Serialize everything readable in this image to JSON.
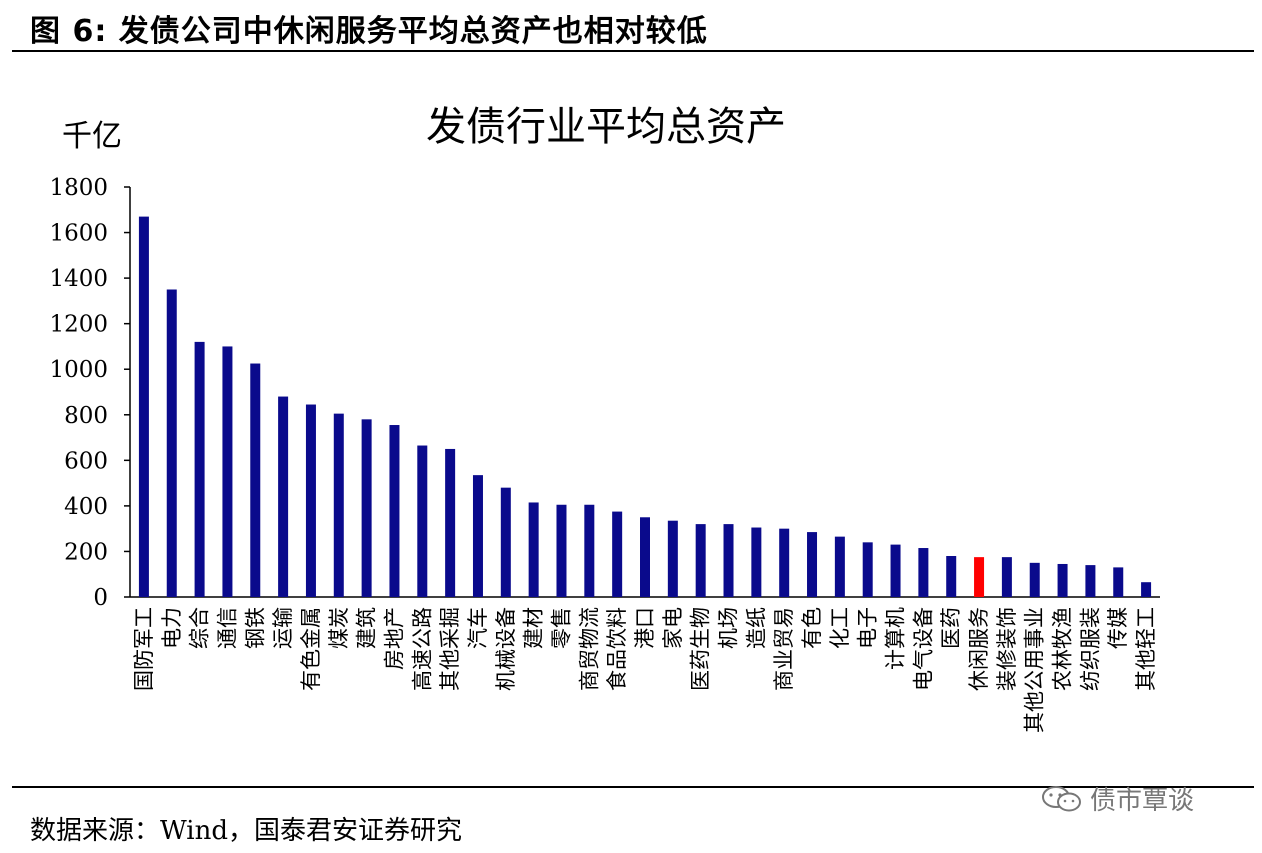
{
  "figure_title": "图  6:  发债公司中休闲服务平均总资产也相对较低",
  "source_text": "数据来源：Wind，国泰君安证券研究",
  "watermark_text": "债市覃谈",
  "colors": {
    "bar": "#0A0A8C",
    "highlight": "#FF0000",
    "axis": "#000000"
  },
  "chart_data": {
    "type": "bar",
    "title": "发债行业平均总资产",
    "unit_label": "千亿",
    "xlabel": "",
    "ylabel": "",
    "ylim": [
      0,
      1800
    ],
    "yticks": [
      0,
      200,
      400,
      600,
      800,
      1000,
      1200,
      1400,
      1600,
      1800
    ],
    "grid": false,
    "legend": "none",
    "highlight_category": "休闲服务",
    "categories": [
      "国防军工",
      "电力",
      "综合",
      "通信",
      "钢铁",
      "运输",
      "有色金属",
      "煤炭",
      "建筑",
      "房地产",
      "高速公路",
      "其他采掘",
      "汽车",
      "机械设备",
      "建材",
      "零售",
      "商贸物流",
      "食品饮料",
      "港口",
      "家电",
      "医药生物",
      "机场",
      "造纸",
      "商业贸易",
      "有色",
      "化工",
      "电子",
      "计算机",
      "电气设备",
      "医药",
      "休闲服务",
      "装修装饰",
      "其他公用事业",
      "农林牧渔",
      "纺织服装",
      "传媒",
      "其他轻工"
    ],
    "values": [
      1670,
      1350,
      1120,
      1100,
      1025,
      880,
      845,
      805,
      780,
      755,
      665,
      650,
      535,
      480,
      415,
      405,
      405,
      375,
      350,
      335,
      320,
      320,
      305,
      300,
      285,
      265,
      240,
      230,
      215,
      180,
      175,
      175,
      150,
      145,
      140,
      130,
      65
    ]
  }
}
